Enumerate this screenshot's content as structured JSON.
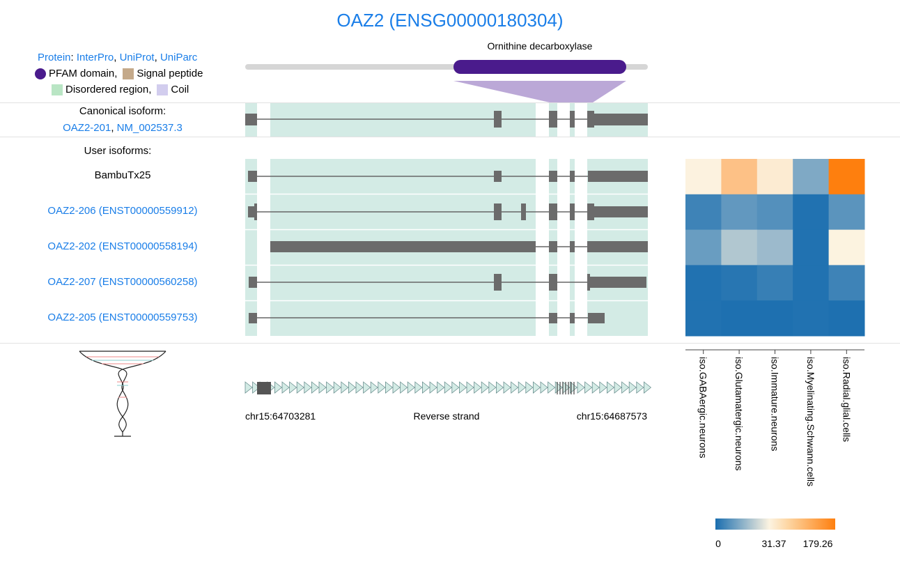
{
  "title": "OAZ2 (ENSG00000180304)",
  "protein_links": {
    "protein": "Protein",
    "sep1": ":",
    "interpro": "InterPro",
    "c1": ",",
    "uniprot": "UniProt",
    "c2": ",",
    "uniparc": "UniParc"
  },
  "legend": {
    "pfam": "PFAM domain,",
    "signal": "Signal peptide",
    "disordered": "Disordered region,",
    "coil": "Coil",
    "colors": {
      "pfam": "#4a1b8c",
      "signal": "#c4a98a",
      "disordered": "#b9e5c4",
      "coil": "#d2cdee"
    }
  },
  "domain": {
    "name": "Ornithine decarboxylase",
    "color": "#4a1b8c"
  },
  "canonical": {
    "header": "Canonical isoform:",
    "transcript": "OAZ2-201",
    "sep": ",",
    "refseq": "NM_002537.3"
  },
  "user_isoforms_header": "User isoforms:",
  "isoforms": [
    {
      "label": "BambuTx25",
      "is_link": false
    },
    {
      "label": "OAZ2-206 (ENST00000559912)",
      "is_link": true
    },
    {
      "label": "OAZ2-202 (ENST00000558194)",
      "is_link": true
    },
    {
      "label": "OAZ2-207 (ENST00000560258)",
      "is_link": true
    },
    {
      "label": "OAZ2-205 (ENST00000559753)",
      "is_link": true
    }
  ],
  "strand": {
    "left_coord": "chr15:64703281",
    "label": "Reverse strand",
    "right_coord": "chr15:64687573"
  },
  "chart_data": {
    "type": "heatmap",
    "rows": [
      "BambuTx25",
      "OAZ2-206 (ENST00000559912)",
      "OAZ2-202 (ENST00000558194)",
      "OAZ2-207 (ENST00000560258)",
      "OAZ2-205 (ENST00000559753)"
    ],
    "columns": [
      "iso.GABAergic.neurons",
      "iso.Glutamatergic.neurons",
      "iso.Immature.neurons",
      "iso.Myelinating.Schwann.cells",
      "iso.Radial.glial.cells"
    ],
    "values": [
      [
        33,
        95,
        42,
        14,
        179
      ],
      [
        5,
        10,
        8,
        1,
        9
      ],
      [
        11,
        21,
        18,
        1,
        32
      ],
      [
        1,
        2,
        4,
        1,
        5
      ],
      [
        1,
        0.5,
        0.5,
        1,
        0.5
      ]
    ],
    "colorscale": {
      "ticks": [
        "0",
        "31.37",
        "179.26"
      ],
      "tick_values": [
        0,
        31.37,
        179.26
      ],
      "colors": [
        "#1a6eaf",
        "#fcf3e1",
        "#fe7f0e"
      ]
    }
  }
}
